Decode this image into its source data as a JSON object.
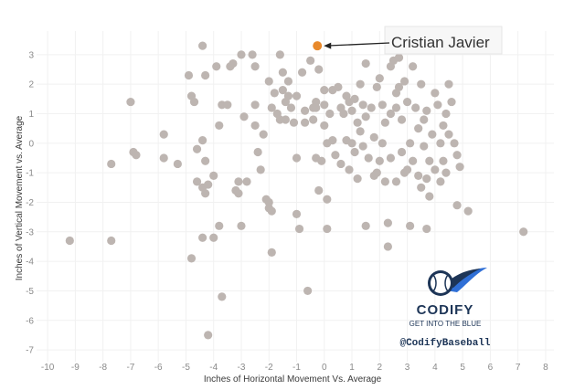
{
  "chart_data": {
    "type": "scatter",
    "xlabel": "Inches of Horizontal Movement Vs. Average",
    "ylabel": "Inches of Vertical Movement vs. Average",
    "xlim": [
      -10.4,
      8.3
    ],
    "ylim": [
      -7.4,
      3.8
    ],
    "xticks": [
      "-10",
      "-9",
      "-8",
      "-7",
      "-6",
      "-5",
      "-4",
      "-3",
      "-2",
      "-1",
      "0",
      "1",
      "2",
      "3",
      "4",
      "5",
      "6",
      "7",
      "8"
    ],
    "yticks": [
      "3",
      "2",
      "1",
      "0",
      "-1",
      "-2",
      "-3",
      "-4",
      "-5",
      "-6",
      "-7"
    ],
    "grid": true,
    "point_color": "#bdb5b1",
    "highlight": {
      "name": "Cristian Javier",
      "x": -0.25,
      "y": 3.3,
      "color": "#e8892b"
    },
    "points": [
      [
        -9.2,
        -3.3
      ],
      [
        -7.7,
        -3.3
      ],
      [
        -7.7,
        -0.7
      ],
      [
        -7.0,
        1.4
      ],
      [
        -6.9,
        -0.3
      ],
      [
        -6.8,
        -0.4
      ],
      [
        -5.8,
        0.3
      ],
      [
        -5.8,
        -0.5
      ],
      [
        -5.3,
        -0.7
      ],
      [
        -4.9,
        2.3
      ],
      [
        -4.8,
        1.6
      ],
      [
        -4.7,
        1.4
      ],
      [
        -4.6,
        -0.2
      ],
      [
        -4.4,
        3.3
      ],
      [
        -4.4,
        0.1
      ],
      [
        -4.3,
        2.3
      ],
      [
        -4.3,
        -0.6
      ],
      [
        -4.8,
        -3.9
      ],
      [
        -4.6,
        -1.3
      ],
      [
        -4.4,
        -1.5
      ],
      [
        -4.3,
        -1.7
      ],
      [
        -4.2,
        -1.4
      ],
      [
        -4.0,
        -1.1
      ],
      [
        -3.9,
        2.6
      ],
      [
        -3.8,
        0.6
      ],
      [
        -3.8,
        -2.8
      ],
      [
        -4.0,
        -3.2
      ],
      [
        -4.4,
        -3.2
      ],
      [
        -3.7,
        -5.2
      ],
      [
        -4.2,
        -6.5
      ],
      [
        -3.7,
        1.3
      ],
      [
        -3.5,
        1.3
      ],
      [
        -3.4,
        2.6
      ],
      [
        -3.3,
        2.7
      ],
      [
        -3.2,
        -1.6
      ],
      [
        -3.1,
        -1.3
      ],
      [
        -3.1,
        -1.7
      ],
      [
        -3.0,
        -2.8
      ],
      [
        -3.0,
        3.0
      ],
      [
        -2.9,
        0.9
      ],
      [
        -2.8,
        -1.3
      ],
      [
        -2.6,
        3.0
      ],
      [
        -2.5,
        2.6
      ],
      [
        -2.5,
        1.3
      ],
      [
        -2.5,
        0.6
      ],
      [
        -2.4,
        -0.3
      ],
      [
        -2.3,
        -0.9
      ],
      [
        -2.2,
        0.3
      ],
      [
        -2.1,
        -1.9
      ],
      [
        -2.0,
        -2.0
      ],
      [
        -2.0,
        -2.2
      ],
      [
        -1.9,
        -2.3
      ],
      [
        -1.9,
        -3.7
      ],
      [
        -2.0,
        2.1
      ],
      [
        -1.9,
        1.2
      ],
      [
        -1.8,
        1.7
      ],
      [
        -1.7,
        1.0
      ],
      [
        -1.6,
        3.0
      ],
      [
        -1.5,
        2.4
      ],
      [
        -1.5,
        1.8
      ],
      [
        -1.4,
        1.4
      ],
      [
        -1.4,
        0.8
      ],
      [
        -1.3,
        2.1
      ],
      [
        -1.3,
        1.6
      ],
      [
        -1.2,
        1.2
      ],
      [
        -1.1,
        0.7
      ],
      [
        -1.0,
        1.6
      ],
      [
        -1.0,
        -0.5
      ],
      [
        -1.0,
        -2.4
      ],
      [
        -0.9,
        -2.9
      ],
      [
        -0.8,
        2.4
      ],
      [
        -0.7,
        1.1
      ],
      [
        -0.7,
        0.7
      ],
      [
        -0.6,
        -5.0
      ],
      [
        -0.5,
        2.8
      ],
      [
        -0.4,
        1.2
      ],
      [
        -0.4,
        0.8
      ],
      [
        -0.3,
        1.4
      ],
      [
        -0.3,
        -0.5
      ],
      [
        -0.2,
        2.5
      ],
      [
        -0.2,
        -1.6
      ],
      [
        -0.1,
        -0.6
      ],
      [
        0.0,
        1.8
      ],
      [
        0.0,
        1.3
      ],
      [
        0.0,
        0.6
      ],
      [
        0.1,
        0.0
      ],
      [
        0.1,
        -1.9
      ],
      [
        0.1,
        -2.9
      ],
      [
        0.2,
        1.0
      ],
      [
        0.3,
        1.8
      ],
      [
        0.3,
        0.1
      ],
      [
        0.4,
        -0.4
      ],
      [
        0.5,
        1.9
      ],
      [
        0.6,
        1.2
      ],
      [
        0.6,
        -0.7
      ],
      [
        0.7,
        1.0
      ],
      [
        0.8,
        0.1
      ],
      [
        0.9,
        1.4
      ],
      [
        0.9,
        -0.9
      ],
      [
        1.0,
        1.1
      ],
      [
        1.0,
        0.0
      ],
      [
        1.1,
        1.5
      ],
      [
        1.1,
        -0.3
      ],
      [
        1.2,
        0.7
      ],
      [
        1.2,
        -1.2
      ],
      [
        1.3,
        2.0
      ],
      [
        1.3,
        0.4
      ],
      [
        1.4,
        1.3
      ],
      [
        1.4,
        -0.1
      ],
      [
        1.5,
        2.7
      ],
      [
        1.5,
        0.9
      ],
      [
        1.5,
        -2.8
      ],
      [
        1.6,
        -0.5
      ],
      [
        1.7,
        1.2
      ],
      [
        1.8,
        0.2
      ],
      [
        1.9,
        1.9
      ],
      [
        1.9,
        -1.0
      ],
      [
        2.0,
        2.2
      ],
      [
        2.0,
        -0.6
      ],
      [
        2.1,
        1.3
      ],
      [
        2.1,
        0.0
      ],
      [
        2.2,
        0.7
      ],
      [
        2.2,
        -1.3
      ],
      [
        2.3,
        -2.7
      ],
      [
        2.3,
        -3.5
      ],
      [
        2.4,
        2.6
      ],
      [
        2.4,
        1.0
      ],
      [
        2.4,
        -0.5
      ],
      [
        2.5,
        2.8
      ],
      [
        2.6,
        1.7
      ],
      [
        2.6,
        1.2
      ],
      [
        2.6,
        -1.3
      ],
      [
        2.7,
        2.9
      ],
      [
        2.7,
        1.9
      ],
      [
        2.8,
        0.8
      ],
      [
        2.8,
        -0.3
      ],
      [
        2.9,
        2.1
      ],
      [
        3.0,
        1.4
      ],
      [
        3.1,
        0.0
      ],
      [
        3.1,
        -2.8
      ],
      [
        3.2,
        2.6
      ],
      [
        3.2,
        -0.6
      ],
      [
        3.3,
        1.2
      ],
      [
        3.4,
        0.5
      ],
      [
        3.4,
        -1.1
      ],
      [
        3.5,
        2.0
      ],
      [
        3.5,
        -1.5
      ],
      [
        3.6,
        0.8
      ],
      [
        3.6,
        -0.1
      ],
      [
        3.7,
        1.1
      ],
      [
        3.7,
        -1.2
      ],
      [
        3.7,
        -2.9
      ],
      [
        3.8,
        -0.6
      ],
      [
        3.8,
        -1.8
      ],
      [
        3.9,
        0.3
      ],
      [
        4.0,
        1.7
      ],
      [
        4.0,
        -0.9
      ],
      [
        4.1,
        1.3
      ],
      [
        4.2,
        0.0
      ],
      [
        4.2,
        -1.3
      ],
      [
        4.3,
        0.6
      ],
      [
        4.3,
        -0.6
      ],
      [
        4.4,
        1.0
      ],
      [
        4.4,
        -1.0
      ],
      [
        4.5,
        2.0
      ],
      [
        4.5,
        0.3
      ],
      [
        4.6,
        1.4
      ],
      [
        4.7,
        0.0
      ],
      [
        4.8,
        -0.4
      ],
      [
        4.8,
        -2.1
      ],
      [
        4.9,
        -0.8
      ],
      [
        5.2,
        -2.3
      ],
      [
        7.2,
        -3.0
      ],
      [
        -0.3,
        1.2
      ],
      [
        0.8,
        1.6
      ],
      [
        1.8,
        -1.1
      ],
      [
        2.9,
        -1.0
      ],
      [
        3.0,
        -0.9
      ],
      [
        -1.6,
        0.8
      ]
    ]
  },
  "brand": {
    "name": "CODIFY",
    "tagline": "GET INTO THE BLUE",
    "handle": "@CodifyBaseball",
    "navy": "#1d3557",
    "accent": "#2f6fd6"
  }
}
